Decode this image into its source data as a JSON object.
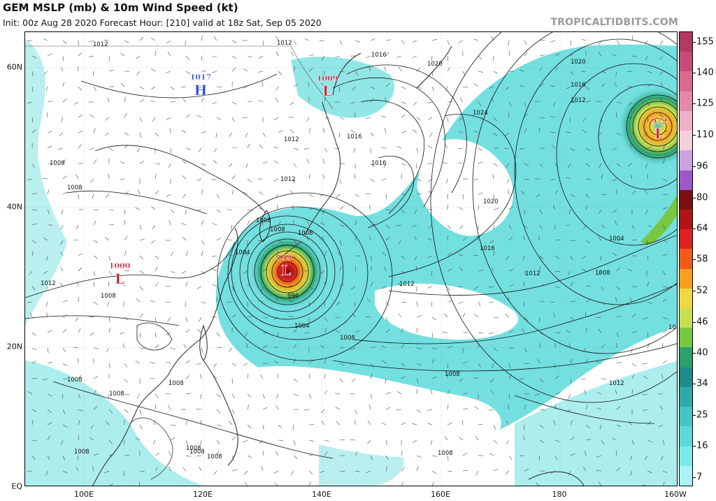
{
  "header": {
    "title": "GEM MSLP (mb) & 10m Wind Speed (kt)",
    "subtitle": "Init: 00z Aug 28 2020   Forecast Hour: [210]   valid at 18z Sat, Sep 05 2020",
    "site": "TROPICALTIDBITS.COM"
  },
  "axes": {
    "lat_labels": [
      "60N",
      "40N",
      "20N",
      "EQ"
    ],
    "lon_labels": [
      "100E",
      "120E",
      "140E",
      "160E",
      "180",
      "160W"
    ]
  },
  "colorbar": {
    "labels": [
      "155",
      "140",
      "125",
      "110",
      "96",
      "80",
      "64",
      "58",
      "52",
      "46",
      "40",
      "34",
      "25",
      "16",
      "7"
    ],
    "colors": [
      "#b03a64",
      "#c74b78",
      "#d86a90",
      "#e48aa8",
      "#eeb0c6",
      "#f4d0de",
      "#c9a2e0",
      "#9b59c9",
      "#7a1010",
      "#b01515",
      "#e02020",
      "#f05a1c",
      "#f5a020",
      "#f0d840",
      "#c8e050",
      "#78c840",
      "#2aa06a",
      "#1e8a8a",
      "#2fa8a8",
      "#45c4c4",
      "#5cdada",
      "#7aeaea",
      "#a8f4f4"
    ]
  },
  "pressure_systems": [
    {
      "type": "H",
      "value": "1017",
      "color": "#1e46d8"
    },
    {
      "type": "L",
      "value": "1009",
      "color": "#d01a2a"
    },
    {
      "type": "L",
      "value": "1000",
      "color": "#d01a2a"
    },
    {
      "type": "L",
      "value": "939",
      "color": "#d01a2a"
    },
    {
      "type": "L",
      "value": "972",
      "color": "#d01a2a"
    }
  ],
  "isobar_labels": [
    "1012",
    "1012",
    "1016",
    "1020",
    "1020",
    "1016",
    "1012",
    "1024",
    "1016",
    "1012",
    "1008",
    "1008",
    "1012",
    "1016",
    "1020",
    "1016",
    "1012",
    "1008",
    "1004",
    "1008",
    "1012",
    "1008",
    "1008",
    "1008",
    "1004",
    "1004",
    "1008",
    "996",
    "1008",
    "1012",
    "1016",
    "1008",
    "1008",
    "1008",
    "1012",
    "1008",
    "1008",
    "1008",
    "1008",
    "1008"
  ]
}
